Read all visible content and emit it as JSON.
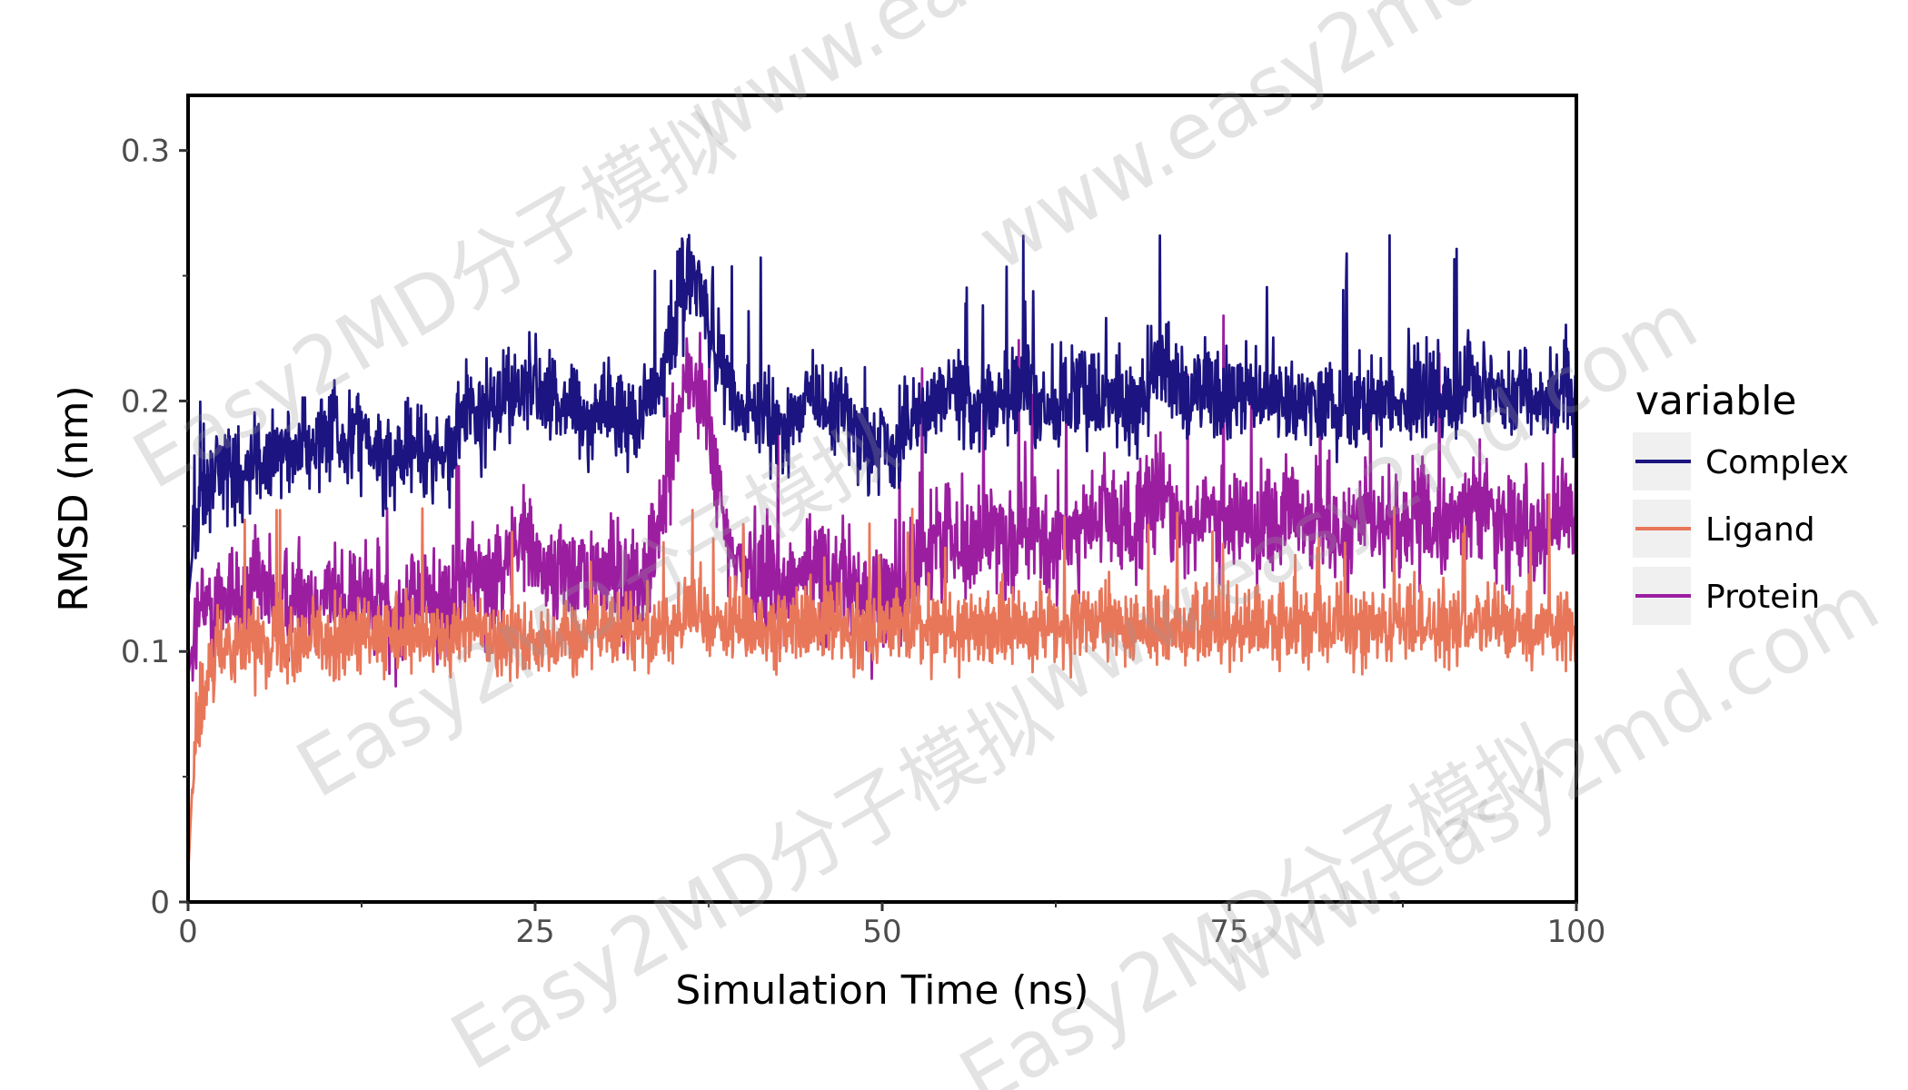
{
  "chart_data": {
    "type": "line",
    "xlabel": "Simulation Time (ns)",
    "ylabel": "RMSD (nm)",
    "xlim": [
      0,
      100
    ],
    "ylim": [
      0,
      0.3
    ],
    "x_ticks": [
      0,
      25,
      50,
      75,
      100
    ],
    "x_tick_labels": [
      "0",
      "25",
      "50",
      "75",
      "100"
    ],
    "y_ticks": [
      0,
      0.1,
      0.2,
      0.3
    ],
    "y_tick_labels": [
      "0",
      "0.1",
      "0.2",
      "0.3"
    ],
    "grid": false,
    "legend": {
      "title": "variable",
      "position": "right",
      "entries": [
        "Complex",
        "Ligand",
        "Protein"
      ]
    },
    "series": [
      {
        "name": "Complex",
        "color": "#1c1480",
        "x": [
          0,
          0.5,
          1,
          2,
          3,
          4,
          5,
          6,
          7,
          8,
          9,
          10,
          11,
          12,
          13,
          14,
          15,
          16,
          17,
          18,
          19,
          20,
          21,
          22,
          23,
          24,
          25,
          26,
          27,
          28,
          29,
          30,
          31,
          32,
          33,
          34,
          35,
          36,
          37,
          38,
          39,
          40,
          41,
          42,
          43,
          44,
          45,
          46,
          47,
          48,
          49,
          50,
          51,
          52,
          53,
          54,
          55,
          56,
          57,
          58,
          59,
          60,
          61,
          62,
          63,
          64,
          65,
          66,
          67,
          68,
          69,
          70,
          71,
          72,
          73,
          74,
          75,
          76,
          77,
          78,
          79,
          80,
          81,
          82,
          83,
          84,
          85,
          86,
          87,
          88,
          89,
          90,
          91,
          92,
          93,
          94,
          95,
          96,
          97,
          98,
          99,
          100
        ],
        "y": [
          0.12,
          0.15,
          0.16,
          0.17,
          0.175,
          0.17,
          0.18,
          0.175,
          0.18,
          0.185,
          0.18,
          0.19,
          0.185,
          0.19,
          0.185,
          0.18,
          0.175,
          0.185,
          0.18,
          0.175,
          0.185,
          0.2,
          0.195,
          0.2,
          0.205,
          0.2,
          0.21,
          0.2,
          0.2,
          0.195,
          0.19,
          0.2,
          0.195,
          0.19,
          0.2,
          0.21,
          0.235,
          0.25,
          0.245,
          0.22,
          0.2,
          0.195,
          0.2,
          0.195,
          0.19,
          0.195,
          0.2,
          0.195,
          0.2,
          0.19,
          0.18,
          0.185,
          0.18,
          0.19,
          0.195,
          0.2,
          0.205,
          0.2,
          0.195,
          0.2,
          0.2,
          0.205,
          0.2,
          0.195,
          0.2,
          0.205,
          0.2,
          0.205,
          0.2,
          0.2,
          0.205,
          0.215,
          0.205,
          0.2,
          0.205,
          0.2,
          0.2,
          0.205,
          0.2,
          0.205,
          0.2,
          0.2,
          0.205,
          0.2,
          0.195,
          0.2,
          0.2,
          0.205,
          0.2,
          0.2,
          0.205,
          0.2,
          0.2,
          0.205,
          0.21,
          0.205,
          0.2,
          0.205,
          0.2,
          0.2,
          0.205,
          0.2
        ]
      },
      {
        "name": "Ligand",
        "color": "#e8775a",
        "x": [
          0,
          0.5,
          1,
          2,
          3,
          4,
          5,
          6,
          7,
          8,
          9,
          10,
          11,
          12,
          13,
          14,
          15,
          16,
          17,
          18,
          19,
          20,
          21,
          22,
          23,
          24,
          25,
          26,
          27,
          28,
          29,
          30,
          31,
          32,
          33,
          34,
          35,
          36,
          37,
          38,
          39,
          40,
          41,
          42,
          43,
          44,
          45,
          46,
          47,
          48,
          49,
          50,
          51,
          52,
          53,
          54,
          55,
          56,
          57,
          58,
          59,
          60,
          61,
          62,
          63,
          64,
          65,
          66,
          67,
          68,
          69,
          70,
          71,
          72,
          73,
          74,
          75,
          76,
          77,
          78,
          79,
          80,
          81,
          82,
          83,
          84,
          85,
          86,
          87,
          88,
          89,
          90,
          91,
          92,
          93,
          94,
          95,
          96,
          97,
          98,
          99,
          100
        ],
        "y": [
          0.01,
          0.07,
          0.075,
          0.1,
          0.105,
          0.105,
          0.105,
          0.105,
          0.105,
          0.105,
          0.105,
          0.105,
          0.105,
          0.105,
          0.105,
          0.105,
          0.105,
          0.105,
          0.105,
          0.105,
          0.105,
          0.11,
          0.11,
          0.105,
          0.105,
          0.105,
          0.105,
          0.105,
          0.105,
          0.105,
          0.11,
          0.11,
          0.11,
          0.11,
          0.11,
          0.11,
          0.11,
          0.115,
          0.115,
          0.11,
          0.11,
          0.11,
          0.11,
          0.11,
          0.11,
          0.11,
          0.11,
          0.11,
          0.11,
          0.11,
          0.11,
          0.11,
          0.11,
          0.11,
          0.11,
          0.11,
          0.11,
          0.11,
          0.11,
          0.11,
          0.11,
          0.11,
          0.11,
          0.11,
          0.11,
          0.11,
          0.11,
          0.11,
          0.11,
          0.11,
          0.11,
          0.11,
          0.11,
          0.11,
          0.11,
          0.11,
          0.11,
          0.11,
          0.11,
          0.11,
          0.11,
          0.11,
          0.11,
          0.11,
          0.11,
          0.11,
          0.11,
          0.11,
          0.11,
          0.11,
          0.11,
          0.11,
          0.11,
          0.11,
          0.11,
          0.11,
          0.11,
          0.11,
          0.11,
          0.11,
          0.11,
          0.11
        ]
      },
      {
        "name": "Protein",
        "color": "#9c1ea0",
        "x": [
          0,
          0.5,
          1,
          2,
          3,
          4,
          5,
          6,
          7,
          8,
          9,
          10,
          11,
          12,
          13,
          14,
          15,
          16,
          17,
          18,
          19,
          20,
          21,
          22,
          23,
          24,
          25,
          26,
          27,
          28,
          29,
          30,
          31,
          32,
          33,
          34,
          35,
          36,
          37,
          38,
          39,
          40,
          41,
          42,
          43,
          44,
          45,
          46,
          47,
          48,
          49,
          50,
          51,
          52,
          53,
          54,
          55,
          56,
          57,
          58,
          59,
          60,
          61,
          62,
          63,
          64,
          65,
          66,
          67,
          68,
          69,
          70,
          71,
          72,
          73,
          74,
          75,
          76,
          77,
          78,
          79,
          80,
          81,
          82,
          83,
          84,
          85,
          86,
          87,
          88,
          89,
          90,
          91,
          92,
          93,
          94,
          95,
          96,
          97,
          98,
          99,
          100
        ],
        "y": [
          0.09,
          0.11,
          0.115,
          0.12,
          0.125,
          0.12,
          0.125,
          0.12,
          0.12,
          0.125,
          0.12,
          0.125,
          0.12,
          0.125,
          0.12,
          0.12,
          0.115,
          0.12,
          0.125,
          0.12,
          0.115,
          0.13,
          0.135,
          0.13,
          0.14,
          0.145,
          0.14,
          0.13,
          0.135,
          0.13,
          0.125,
          0.135,
          0.13,
          0.125,
          0.13,
          0.15,
          0.19,
          0.21,
          0.205,
          0.17,
          0.14,
          0.13,
          0.135,
          0.13,
          0.125,
          0.13,
          0.135,
          0.13,
          0.13,
          0.125,
          0.12,
          0.125,
          0.12,
          0.13,
          0.14,
          0.145,
          0.15,
          0.14,
          0.145,
          0.15,
          0.145,
          0.15,
          0.145,
          0.14,
          0.145,
          0.15,
          0.15,
          0.155,
          0.15,
          0.15,
          0.155,
          0.165,
          0.155,
          0.15,
          0.155,
          0.15,
          0.15,
          0.155,
          0.15,
          0.15,
          0.155,
          0.15,
          0.155,
          0.15,
          0.145,
          0.15,
          0.15,
          0.155,
          0.15,
          0.15,
          0.155,
          0.15,
          0.15,
          0.155,
          0.16,
          0.155,
          0.15,
          0.155,
          0.15,
          0.15,
          0.155,
          0.15
        ]
      }
    ]
  },
  "watermarks": [
    "Easy2MD分子模拟",
    "www.easy2md.com",
    "Easy2MD分子模拟",
    "www.easy2md.com",
    "Easy2MD分子模拟",
    "www.easy2md.com",
    "Easy2MD分子模拟",
    "www.easy2md.com"
  ]
}
